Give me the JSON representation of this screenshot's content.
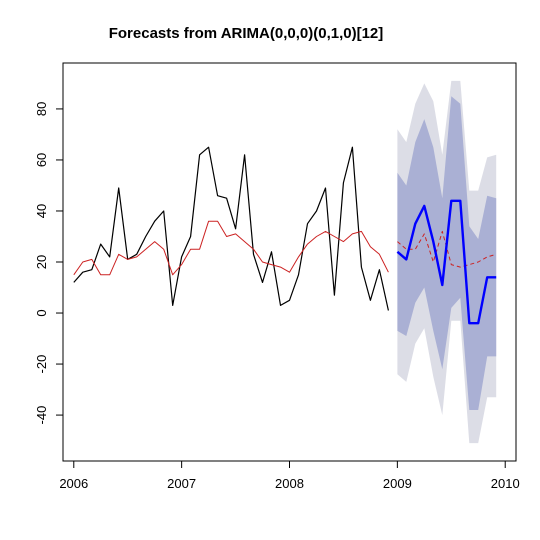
{
  "chart_data": {
    "type": "line",
    "title": "Forecasts from ARIMA(0,0,0)(0,1,0)[12]",
    "xlabel": "",
    "ylabel": "",
    "xlim": [
      2005.9,
      2010.1
    ],
    "ylim": [
      -58,
      98
    ],
    "x_ticks": [
      2006,
      2007,
      2008,
      2009,
      2010
    ],
    "y_ticks": [
      -40,
      -20,
      0,
      20,
      40,
      60,
      80
    ],
    "grid": false,
    "legend": "none",
    "colors": {
      "actual": "#000000",
      "fitted": "#cc2222",
      "forecast": "#0000ff",
      "band80": "#aab0d4",
      "band95": "#dcdde6"
    },
    "series": [
      {
        "x_start": 2006,
        "x_step": 0.08333333,
        "values": [
          12,
          16,
          17,
          27,
          22,
          49,
          21,
          23,
          30,
          36,
          40,
          3,
          22,
          30,
          62,
          65,
          46,
          45,
          33,
          62,
          23,
          12,
          24,
          3,
          5,
          15,
          35,
          40,
          49,
          7,
          51,
          65,
          18,
          5,
          17,
          1
        ]
      },
      {
        "x_start": 2006,
        "x_step": 0.08333333,
        "values": [
          15,
          20,
          21,
          15,
          15,
          23,
          21,
          22,
          25,
          28,
          25,
          15,
          19,
          25,
          25,
          36,
          36,
          30,
          31,
          28,
          25,
          20,
          19,
          18,
          16,
          22,
          27,
          30,
          32,
          30,
          28,
          31,
          32,
          26,
          23,
          16
        ]
      },
      {
        "x_start": 2009,
        "x_step": 0.08333333,
        "values": [
          28,
          25,
          25,
          31,
          20,
          32,
          19,
          18,
          19,
          20,
          22,
          23
        ]
      },
      {
        "x_start": 2009,
        "x_step": 0.08333333,
        "values": [
          24,
          21,
          35,
          42,
          28,
          11,
          44,
          44,
          -4,
          -4,
          14,
          14
        ]
      }
    ],
    "forecast_interval_80": {
      "x_start": 2009,
      "x_step": 0.08333333,
      "upper": [
        55,
        50,
        67,
        76,
        65,
        45,
        85,
        82,
        34,
        29,
        46,
        45
      ],
      "lower": [
        -7,
        -9,
        4,
        10,
        -7,
        -22,
        2,
        6,
        -38,
        -38,
        -17,
        -17
      ]
    },
    "forecast_interval_95": {
      "x_start": 2009,
      "x_step": 0.08333333,
      "upper": [
        72,
        67,
        82,
        90,
        83,
        62,
        91,
        91,
        48,
        48,
        61,
        62
      ],
      "lower": [
        -24,
        -27,
        -12,
        -6,
        -25,
        -40,
        -3,
        -3,
        -51,
        -51,
        -33,
        -33
      ]
    }
  }
}
